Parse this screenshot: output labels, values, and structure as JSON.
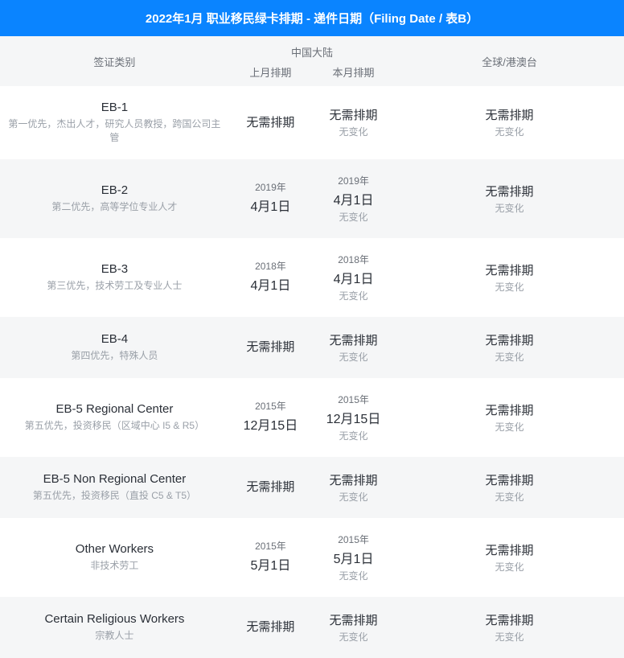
{
  "title": "2022年1月 职业移民绿卡排期 - 递件日期（Filing Date / 表B）",
  "columns": {
    "category": "签证类别",
    "china_group": "中国大陆",
    "china_prev": "上月排期",
    "china_curr": "本月排期",
    "global": "全球/港澳台"
  },
  "labels": {
    "no_wait": "无需排期",
    "no_change": "无变化"
  },
  "colors": {
    "header_bg": "#0a84ff",
    "header_text": "#ffffff",
    "row_alt_bg": "#f5f6f7",
    "row_bg": "#ffffff",
    "text_primary": "#2a2f37",
    "text_secondary": "#6a6f77",
    "text_muted": "#9aa0a8"
  },
  "rows": [
    {
      "name": "EB-1",
      "desc": "第一优先，杰出人才，研究人员教授，跨国公司主管",
      "prev": {
        "type": "nowait"
      },
      "curr": {
        "type": "nowait",
        "change": "no_change"
      },
      "global": {
        "type": "nowait",
        "change": "no_change"
      }
    },
    {
      "name": "EB-2",
      "desc": "第二优先，高等学位专业人才",
      "prev": {
        "type": "date",
        "year": "2019年",
        "date": "4月1日"
      },
      "curr": {
        "type": "date",
        "year": "2019年",
        "date": "4月1日",
        "change": "no_change"
      },
      "global": {
        "type": "nowait",
        "change": "no_change"
      }
    },
    {
      "name": "EB-3",
      "desc": "第三优先，技术劳工及专业人士",
      "prev": {
        "type": "date",
        "year": "2018年",
        "date": "4月1日"
      },
      "curr": {
        "type": "date",
        "year": "2018年",
        "date": "4月1日",
        "change": "no_change"
      },
      "global": {
        "type": "nowait",
        "change": "no_change"
      }
    },
    {
      "name": "EB-4",
      "desc": "第四优先，特殊人员",
      "prev": {
        "type": "nowait"
      },
      "curr": {
        "type": "nowait",
        "change": "no_change"
      },
      "global": {
        "type": "nowait",
        "change": "no_change"
      }
    },
    {
      "name": "EB-5 Regional Center",
      "desc": "第五优先，投资移民（区域中心 I5 & R5）",
      "prev": {
        "type": "date",
        "year": "2015年",
        "date": "12月15日"
      },
      "curr": {
        "type": "date",
        "year": "2015年",
        "date": "12月15日",
        "change": "no_change"
      },
      "global": {
        "type": "nowait",
        "change": "no_change"
      }
    },
    {
      "name": "EB-5 Non Regional Center",
      "desc": "第五优先，投资移民（直投 C5 & T5）",
      "prev": {
        "type": "nowait"
      },
      "curr": {
        "type": "nowait",
        "change": "no_change"
      },
      "global": {
        "type": "nowait",
        "change": "no_change"
      }
    },
    {
      "name": "Other Workers",
      "desc": "非技术劳工",
      "prev": {
        "type": "date",
        "year": "2015年",
        "date": "5月1日"
      },
      "curr": {
        "type": "date",
        "year": "2015年",
        "date": "5月1日",
        "change": "no_change"
      },
      "global": {
        "type": "nowait",
        "change": "no_change"
      }
    },
    {
      "name": "Certain Religious Workers",
      "desc": "宗教人士",
      "prev": {
        "type": "nowait"
      },
      "curr": {
        "type": "nowait",
        "change": "no_change"
      },
      "global": {
        "type": "nowait",
        "change": "no_change"
      }
    }
  ]
}
